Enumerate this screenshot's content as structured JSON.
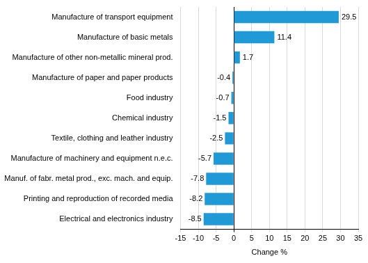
{
  "chart_data": {
    "type": "bar",
    "orientation": "horizontal",
    "categories": [
      "Manufacture of transport equipment",
      "Manufacture of basic metals",
      "Manufacture of other non-metallic mineral prod.",
      "Manufacture of paper and paper products",
      "Food industry",
      "Chemical industry",
      "Textile, clothing and leather industry",
      "Manufacture of machinery and equipment n.e.c.",
      "Manuf. of fabr. metal prod., exc. mach. and equip.",
      "Printing and reproduction of recorded media",
      "Electrical and electronics industry"
    ],
    "values": [
      29.5,
      11.4,
      1.7,
      -0.4,
      -0.7,
      -1.5,
      -2.5,
      -5.7,
      -7.8,
      -8.2,
      -8.5
    ],
    "color": "#1f9ad7",
    "x_label": "Change %",
    "xlim": [
      -15,
      35
    ],
    "xticks": [
      -15,
      -10,
      -5,
      0,
      5,
      10,
      15,
      20,
      25,
      30,
      35
    ],
    "grid": true,
    "data_labels": true
  }
}
